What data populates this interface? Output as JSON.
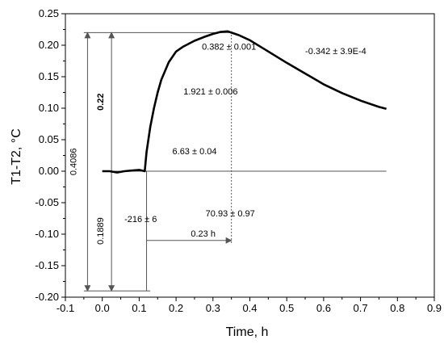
{
  "chart_data": {
    "type": "line",
    "xlabel": "Time, h",
    "ylabel": "T1-T2, °C",
    "xlim": [
      -0.1,
      0.9
    ],
    "ylim": [
      -0.2,
      0.25
    ],
    "x_ticks": [
      "-0.1",
      "0.0",
      "0.1",
      "0.2",
      "0.3",
      "0.4",
      "0.5",
      "0.6",
      "0.7",
      "0.8",
      "0.9"
    ],
    "y_ticks": [
      "-0.20",
      "-0.15",
      "-0.10",
      "-0.05",
      "0.00",
      "0.05",
      "0.10",
      "0.15",
      "0.20",
      "0.25"
    ],
    "series": [
      {
        "x": [
          0.0,
          0.02,
          0.04,
          0.06,
          0.08,
          0.1,
          0.115,
          0.12,
          0.13,
          0.14,
          0.15,
          0.16,
          0.18,
          0.2,
          0.22,
          0.25,
          0.28,
          0.3,
          0.32,
          0.34,
          0.35,
          0.37,
          0.4,
          0.45,
          0.5,
          0.55,
          0.6,
          0.65,
          0.7,
          0.75,
          0.77
        ],
        "y": [
          0.0,
          0.0,
          -0.002,
          0.0,
          0.001,
          0.002,
          0.0,
          0.03,
          0.07,
          0.1,
          0.125,
          0.145,
          0.173,
          0.19,
          0.198,
          0.207,
          0.214,
          0.218,
          0.221,
          0.222,
          0.22,
          0.216,
          0.208,
          0.19,
          0.172,
          0.155,
          0.138,
          0.124,
          0.112,
          0.102,
          0.099
        ]
      }
    ],
    "annotations": [
      {
        "text": "0.382 ± 0.001",
        "x": 0.27,
        "y": 0.193
      },
      {
        "text": "-0.342 ± 3.9E-4",
        "x": 0.55,
        "y": 0.186
      },
      {
        "text": "1.921 ± 0.006",
        "x": 0.22,
        "y": 0.122
      },
      {
        "text": "6.63 ± 0.04",
        "x": 0.19,
        "y": 0.027
      },
      {
        "text": "70.93 ± 0.97",
        "x": 0.28,
        "y": -0.072
      },
      {
        "text": "-216 ± 6",
        "x": 0.06,
        "y": -0.081
      },
      {
        "text": "0.23 h",
        "x": 0.24,
        "y": -0.104
      }
    ],
    "vertical_labels": [
      {
        "text": "0.4086",
        "x": -0.07,
        "y": 0.015,
        "bold": false
      },
      {
        "text": "0.22",
        "x": 0.003,
        "y": 0.11,
        "bold": true
      },
      {
        "text": "0.1889",
        "x": 0.003,
        "y": -0.095,
        "bold": false
      }
    ],
    "reference_lines": [
      {
        "x1": -0.05,
        "y1": 0.22,
        "x2": 0.35,
        "y2": 0.22
      },
      {
        "x1": -0.05,
        "y1": -0.19,
        "x2": 0.13,
        "y2": -0.19
      },
      {
        "x1": 0.0,
        "y1": 0.0,
        "x2": 0.77,
        "y2": 0.0
      },
      {
        "x1": 0.12,
        "y1": -0.19,
        "x2": 0.12,
        "y2": 0.0
      }
    ],
    "dashed_lines": [
      {
        "x1": 0.35,
        "y1": 0.222,
        "x2": 0.35,
        "y2": -0.115
      }
    ],
    "arrows": [
      {
        "x1": -0.04,
        "y1": 0.22,
        "x2": -0.04,
        "y2": -0.19,
        "double": true
      },
      {
        "x1": 0.025,
        "y1": 0.22,
        "x2": 0.025,
        "y2": -0.19,
        "double": true
      },
      {
        "x1": 0.12,
        "y1": -0.11,
        "x2": 0.35,
        "y2": -0.11,
        "double": false
      }
    ]
  }
}
